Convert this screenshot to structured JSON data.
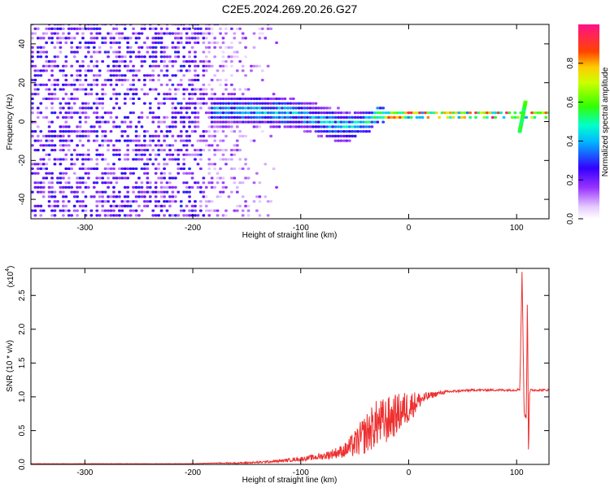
{
  "title": "C2E5.2024.269.20.26.G27",
  "colors": {
    "trace": "#ee3030",
    "ridge_core": "#e01010",
    "background": "#ffffff",
    "axes": "#000000"
  },
  "chart_data": [
    {
      "type": "heatmap",
      "title": "C2E5.2024.269.20.26.G27",
      "xlabel": "Height of straight line (km)",
      "ylabel": "Frequency (Hz)",
      "xlim": [
        -350,
        130
      ],
      "ylim": [
        -50,
        50
      ],
      "x_ticks": [
        -300,
        -200,
        -100,
        0,
        100
      ],
      "x_tick_labels": [
        "-300",
        "-200",
        "-100",
        "0",
        "100"
      ],
      "y_ticks": [
        -40,
        -20,
        0,
        20,
        40
      ],
      "y_tick_labels": [
        "-40",
        "-20",
        "0",
        "20",
        "40"
      ],
      "colorbar": {
        "label": "Normalized spectral amplitude",
        "range": [
          0,
          1
        ],
        "ticks": [
          0,
          0.2,
          0.4,
          0.6,
          0.8
        ],
        "tick_labels": [
          "0.0",
          "0.2",
          "0.4",
          "0.6",
          "0.8"
        ]
      },
      "ridge": {
        "x": [
          -185,
          -150,
          -120,
          -100,
          -80,
          -60,
          -45,
          -30,
          -20,
          0,
          20,
          40,
          60,
          80,
          100,
          110,
          130
        ],
        "frequency_center": [
          4,
          4,
          3,
          2,
          -2,
          -4,
          -3,
          2,
          1,
          2,
          2,
          2,
          2,
          2,
          2,
          2,
          2
        ],
        "half_width_hz": [
          5,
          5,
          5,
          5,
          5,
          5,
          4,
          3,
          1.5,
          1.2,
          1,
          1,
          1,
          1,
          1,
          1,
          1
        ],
        "peak_amplitude": [
          0.45,
          0.5,
          0.5,
          0.5,
          0.5,
          0.55,
          0.6,
          0.7,
          0.9,
          1.0,
          1.0,
          1.0,
          1.0,
          1.0,
          1.0,
          1.0,
          1.0
        ]
      },
      "spike": {
        "x": 105,
        "frequency_range": [
          -5,
          10
        ]
      },
      "noise_region_x": [
        -350,
        -190
      ]
    },
    {
      "type": "line",
      "xlabel": "Height of straight line (km)",
      "ylabel": "SNR (10 * v/v)",
      "y_scale_label": "(x10",
      "y_scale_exponent": "4",
      "xlim": [
        -350,
        130
      ],
      "ylim": [
        0,
        2.9
      ],
      "x_ticks": [
        -300,
        -200,
        -100,
        0,
        100
      ],
      "x_tick_labels": [
        "-300",
        "-200",
        "-100",
        "0",
        "100"
      ],
      "y_ticks": [
        0,
        0.5,
        1.0,
        1.5,
        2.0,
        2.5
      ],
      "y_tick_labels": [
        "0.0",
        "0.5",
        "1.0",
        "1.5",
        "2.0",
        "2.5"
      ],
      "series": [
        {
          "x": [
            -350,
            -300,
            -250,
            -200,
            -180,
            -160,
            -140,
            -120,
            -100,
            -80,
            -60,
            -50,
            -40,
            -30,
            -20,
            -10,
            0,
            10,
            20,
            30,
            40,
            60,
            80,
            100,
            103,
            105,
            107,
            109,
            110,
            111,
            112,
            113,
            130
          ],
          "y": [
            0.01,
            0.01,
            0.01,
            0.01,
            0.02,
            0.02,
            0.03,
            0.05,
            0.08,
            0.12,
            0.2,
            0.3,
            0.45,
            0.6,
            0.65,
            0.75,
            0.85,
            0.95,
            1.02,
            1.06,
            1.08,
            1.1,
            1.1,
            1.1,
            1.12,
            2.85,
            0.75,
            0.7,
            2.55,
            0.1,
            1.05,
            1.1,
            1.1
          ],
          "noise_amplitude": [
            0.002,
            0.002,
            0.002,
            0.003,
            0.005,
            0.01,
            0.015,
            0.02,
            0.03,
            0.05,
            0.1,
            0.2,
            0.3,
            0.35,
            0.35,
            0.3,
            0.25,
            0.12,
            0.05,
            0.03,
            0.02,
            0.015,
            0.015,
            0.015,
            0.02,
            0,
            0.03,
            0.03,
            0,
            0,
            0.02,
            0.015,
            0.015
          ]
        }
      ]
    }
  ]
}
